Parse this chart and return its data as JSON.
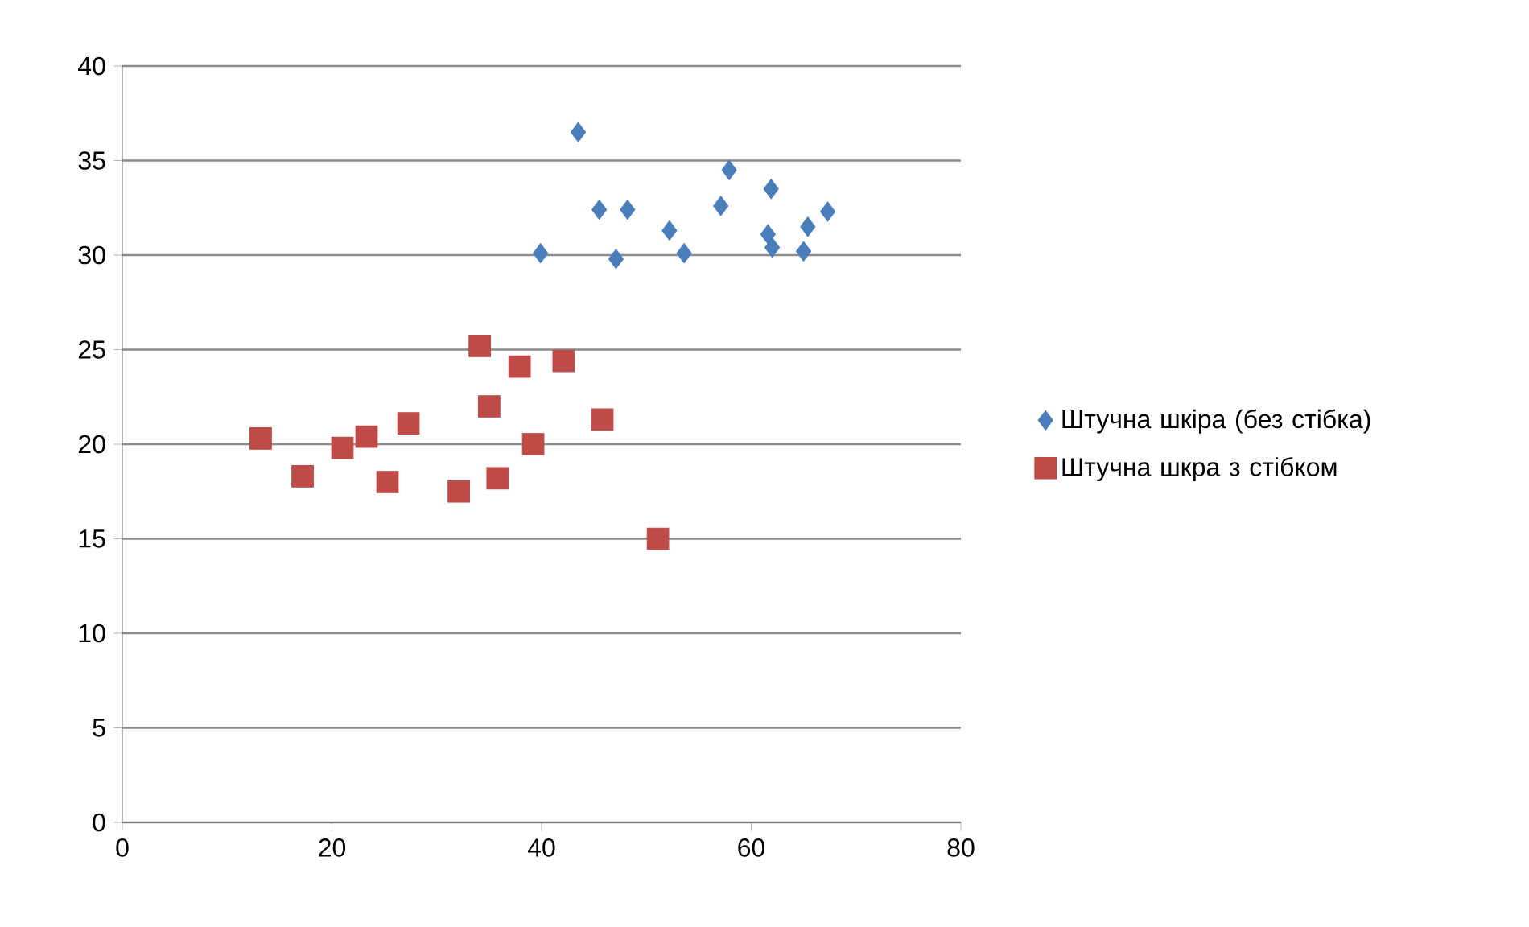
{
  "chart_data": {
    "type": "scatter",
    "xlim": [
      0,
      80
    ],
    "ylim": [
      0,
      40
    ],
    "xticks": [
      0,
      20,
      40,
      60,
      80
    ],
    "yticks": [
      0,
      5,
      10,
      15,
      20,
      25,
      30,
      35,
      40
    ],
    "grid": "y",
    "legend": "right",
    "series": [
      {
        "name": "Штучна шкіра (без стібка)",
        "color": "#4a7ebb",
        "marker": "diamond",
        "x": [
          39.9,
          43.5,
          45.5,
          48.2,
          47.1,
          52.2,
          53.6,
          57.1,
          57.9,
          61.9,
          61.6,
          62.0,
          65.0,
          65.4,
          67.3
        ],
        "values": [
          30.1,
          36.5,
          32.4,
          32.4,
          29.8,
          31.3,
          30.1,
          32.6,
          34.5,
          33.5,
          31.1,
          30.4,
          30.2,
          31.5,
          32.3
        ]
      },
      {
        "name": "Штучна шкра з стібком",
        "color": "#be4b48",
        "marker": "square",
        "x": [
          13.2,
          17.2,
          21.0,
          23.3,
          25.3,
          27.3,
          32.1,
          34.1,
          35.0,
          35.8,
          37.9,
          39.2,
          42.1,
          45.8,
          51.1
        ],
        "values": [
          20.3,
          18.3,
          19.8,
          20.4,
          18.0,
          21.1,
          17.5,
          25.2,
          22.0,
          18.2,
          24.1,
          20.0,
          24.4,
          21.3,
          15.0
        ]
      }
    ]
  }
}
